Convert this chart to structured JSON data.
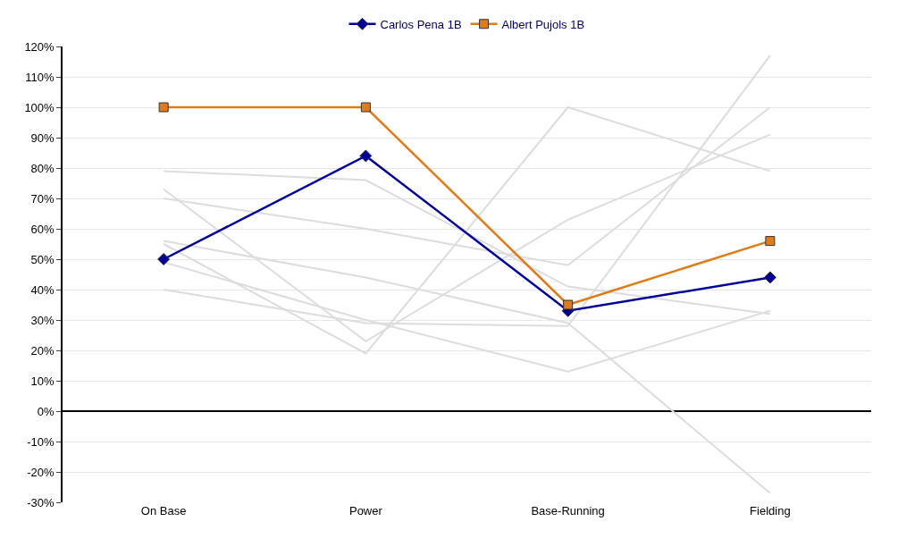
{
  "chart_data": {
    "type": "line",
    "categories": [
      "On Base",
      "Power",
      "Base-Running",
      "Fielding"
    ],
    "series": [
      {
        "color": "#dddddd",
        "values": [
          79,
          76,
          41,
          32
        ],
        "marker": "none"
      },
      {
        "color": "#dddddd",
        "values": [
          73,
          23,
          63,
          91
        ],
        "marker": "none"
      },
      {
        "color": "#dddddd",
        "values": [
          70,
          60,
          48,
          100
        ],
        "marker": "none"
      },
      {
        "color": "#dddddd",
        "values": [
          56,
          44,
          29,
          -27
        ],
        "marker": "none"
      },
      {
        "color": "#dddddd",
        "values": [
          55,
          19,
          100,
          79
        ],
        "marker": "none"
      },
      {
        "color": "#dddddd",
        "values": [
          49,
          30,
          13,
          33
        ],
        "marker": "none"
      },
      {
        "color": "#dddddd",
        "values": [
          40,
          29,
          28,
          117
        ],
        "marker": "none"
      },
      {
        "name": "Carlos Pena 1B",
        "color": "#000099",
        "values": [
          50,
          84,
          33,
          44
        ],
        "marker": "diamond"
      },
      {
        "name": "Albert Pujols 1B",
        "color": "#e07b1a",
        "values": [
          100,
          100,
          35,
          56
        ],
        "marker": "square"
      }
    ],
    "ylim": [
      -30,
      120
    ],
    "yticks": [
      {
        "value": -30,
        "label": "-30%"
      },
      {
        "value": -20,
        "label": "-20%"
      },
      {
        "value": -10,
        "label": "-10%"
      },
      {
        "value": 0,
        "label": "0%"
      },
      {
        "value": 10,
        "label": "10%"
      },
      {
        "value": 20,
        "label": "20%"
      },
      {
        "value": 30,
        "label": "30%"
      },
      {
        "value": 40,
        "label": "40%"
      },
      {
        "value": 50,
        "label": "50%"
      },
      {
        "value": 60,
        "label": "60%"
      },
      {
        "value": 70,
        "label": "70%"
      },
      {
        "value": 80,
        "label": "80%"
      },
      {
        "value": 90,
        "label": "90%"
      },
      {
        "value": 100,
        "label": "100%"
      },
      {
        "value": 110,
        "label": "110%"
      },
      {
        "value": 120,
        "label": "120%"
      }
    ],
    "grid": "y",
    "legend": "top"
  }
}
